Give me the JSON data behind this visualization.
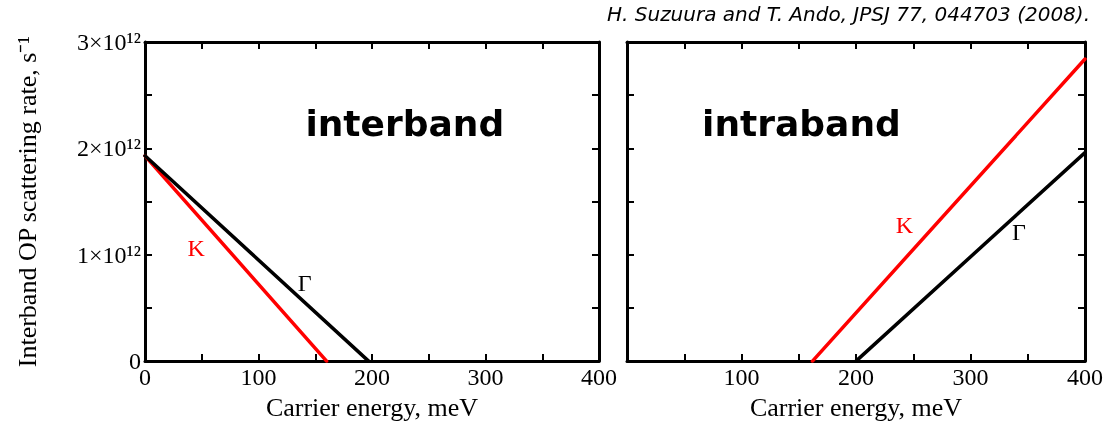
{
  "chart_data": [
    {
      "type": "line",
      "title": "interband",
      "xlabel": "Carrier energy, meV",
      "ylabel": "Interband OP scattering rate, s⁻¹",
      "xlim": [
        0,
        400
      ],
      "ylim": [
        0,
        3000000000000.0
      ],
      "xticks": [
        0,
        {
          "value": 50,
          "label": null
        },
        100,
        {
          "value": 150,
          "label": null
        },
        200,
        {
          "value": 250,
          "label": null
        },
        300,
        {
          "value": 350,
          "label": null
        },
        400
      ],
      "yticks": [
        0,
        {
          "value": 500000000000.0,
          "label": null
        },
        {
          "value": 1000000000000.0,
          "label": "1×10¹²"
        },
        {
          "value": 1500000000000.0,
          "label": null
        },
        {
          "value": 2000000000000.0,
          "label": "2×10¹²"
        },
        {
          "value": 2500000000000.0,
          "label": null
        },
        {
          "value": 3000000000000.0,
          "label": "3×10¹²"
        }
      ],
      "series": [
        {
          "name": "K",
          "color": "#ff0000",
          "x": [
            0,
            160
          ],
          "values": [
            1930000000000.0,
            0
          ]
        },
        {
          "name": "Γ",
          "color": "#000000",
          "x": [
            0,
            197
          ],
          "values": [
            1930000000000.0,
            0
          ]
        }
      ]
    },
    {
      "type": "line",
      "title": "intraband",
      "xlabel": "Carrier energy, meV",
      "xlim": [
        0,
        400
      ],
      "ylim": [
        0,
        3000000000000.0
      ],
      "tick_labels": "x",
      "xticks": [
        {
          "value": 0,
          "label": null
        },
        {
          "value": 50,
          "label": null
        },
        100,
        {
          "value": 150,
          "label": null
        },
        200,
        {
          "value": 250,
          "label": null
        },
        300,
        {
          "value": 350,
          "label": null
        },
        400
      ],
      "yticks": [
        {
          "value": 0,
          "label": null
        },
        {
          "value": 500000000000.0,
          "label": null
        },
        {
          "value": 1000000000000.0,
          "label": null
        },
        {
          "value": 1500000000000.0,
          "label": null
        },
        {
          "value": 2000000000000.0,
          "label": null
        },
        {
          "value": 2500000000000.0,
          "label": null
        },
        {
          "value": 3000000000000.0,
          "label": null
        }
      ],
      "annotations": [
        "H. Suzuura and T. Ando, JPSJ 77, 044703 (2008)."
      ],
      "series": [
        {
          "name": "K",
          "color": "#ff0000",
          "x": [
            162,
            400
          ],
          "values": [
            0,
            2840000000000.0
          ]
        },
        {
          "name": "Γ",
          "color": "#000000",
          "x": [
            200,
            400
          ],
          "values": [
            0,
            1960000000000.0
          ]
        }
      ]
    }
  ]
}
